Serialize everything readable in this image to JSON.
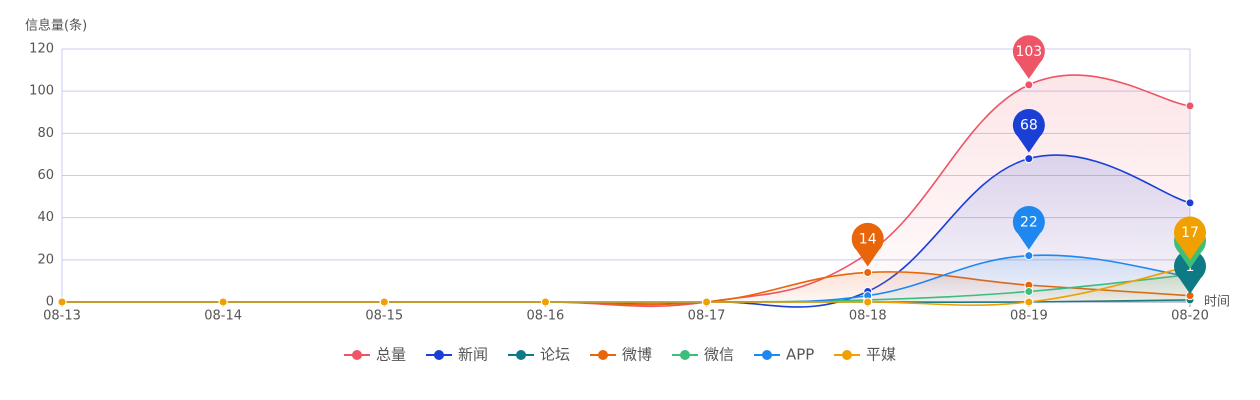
{
  "chart_data": {
    "type": "line",
    "y_axis_label": "信息量(条)",
    "x_axis_label": "时间",
    "categories": [
      "08-13",
      "08-14",
      "08-15",
      "08-16",
      "08-17",
      "08-18",
      "08-19",
      "08-20"
    ],
    "ylim": [
      0,
      120
    ],
    "yticks": [
      0,
      20,
      40,
      60,
      80,
      100,
      120
    ],
    "grid": true,
    "legend": "bottom",
    "series": [
      {
        "name": "总量",
        "color": "#ee5566",
        "values": [
          0,
          0,
          0,
          0,
          0,
          23,
          103,
          93
        ]
      },
      {
        "name": "新闻",
        "color": "#1a3fd6",
        "values": [
          0,
          0,
          0,
          0,
          0,
          5,
          68,
          47
        ]
      },
      {
        "name": "论坛",
        "color": "#0e7a85",
        "values": [
          0,
          0,
          0,
          0,
          0,
          0,
          0,
          1
        ]
      },
      {
        "name": "微博",
        "color": "#e8650a",
        "values": [
          0,
          0,
          0,
          0,
          0,
          14,
          8,
          3
        ]
      },
      {
        "name": "微信",
        "color": "#3dbf78",
        "values": [
          0,
          0,
          0,
          0,
          0,
          1,
          5,
          13
        ]
      },
      {
        "name": "APP",
        "color": "#1e88f0",
        "values": [
          0,
          0,
          0,
          0,
          0,
          3,
          22,
          12
        ]
      },
      {
        "name": "平媒",
        "color": "#f0a000",
        "values": [
          0,
          0,
          0,
          0,
          0,
          0,
          0,
          17
        ]
      }
    ]
  }
}
